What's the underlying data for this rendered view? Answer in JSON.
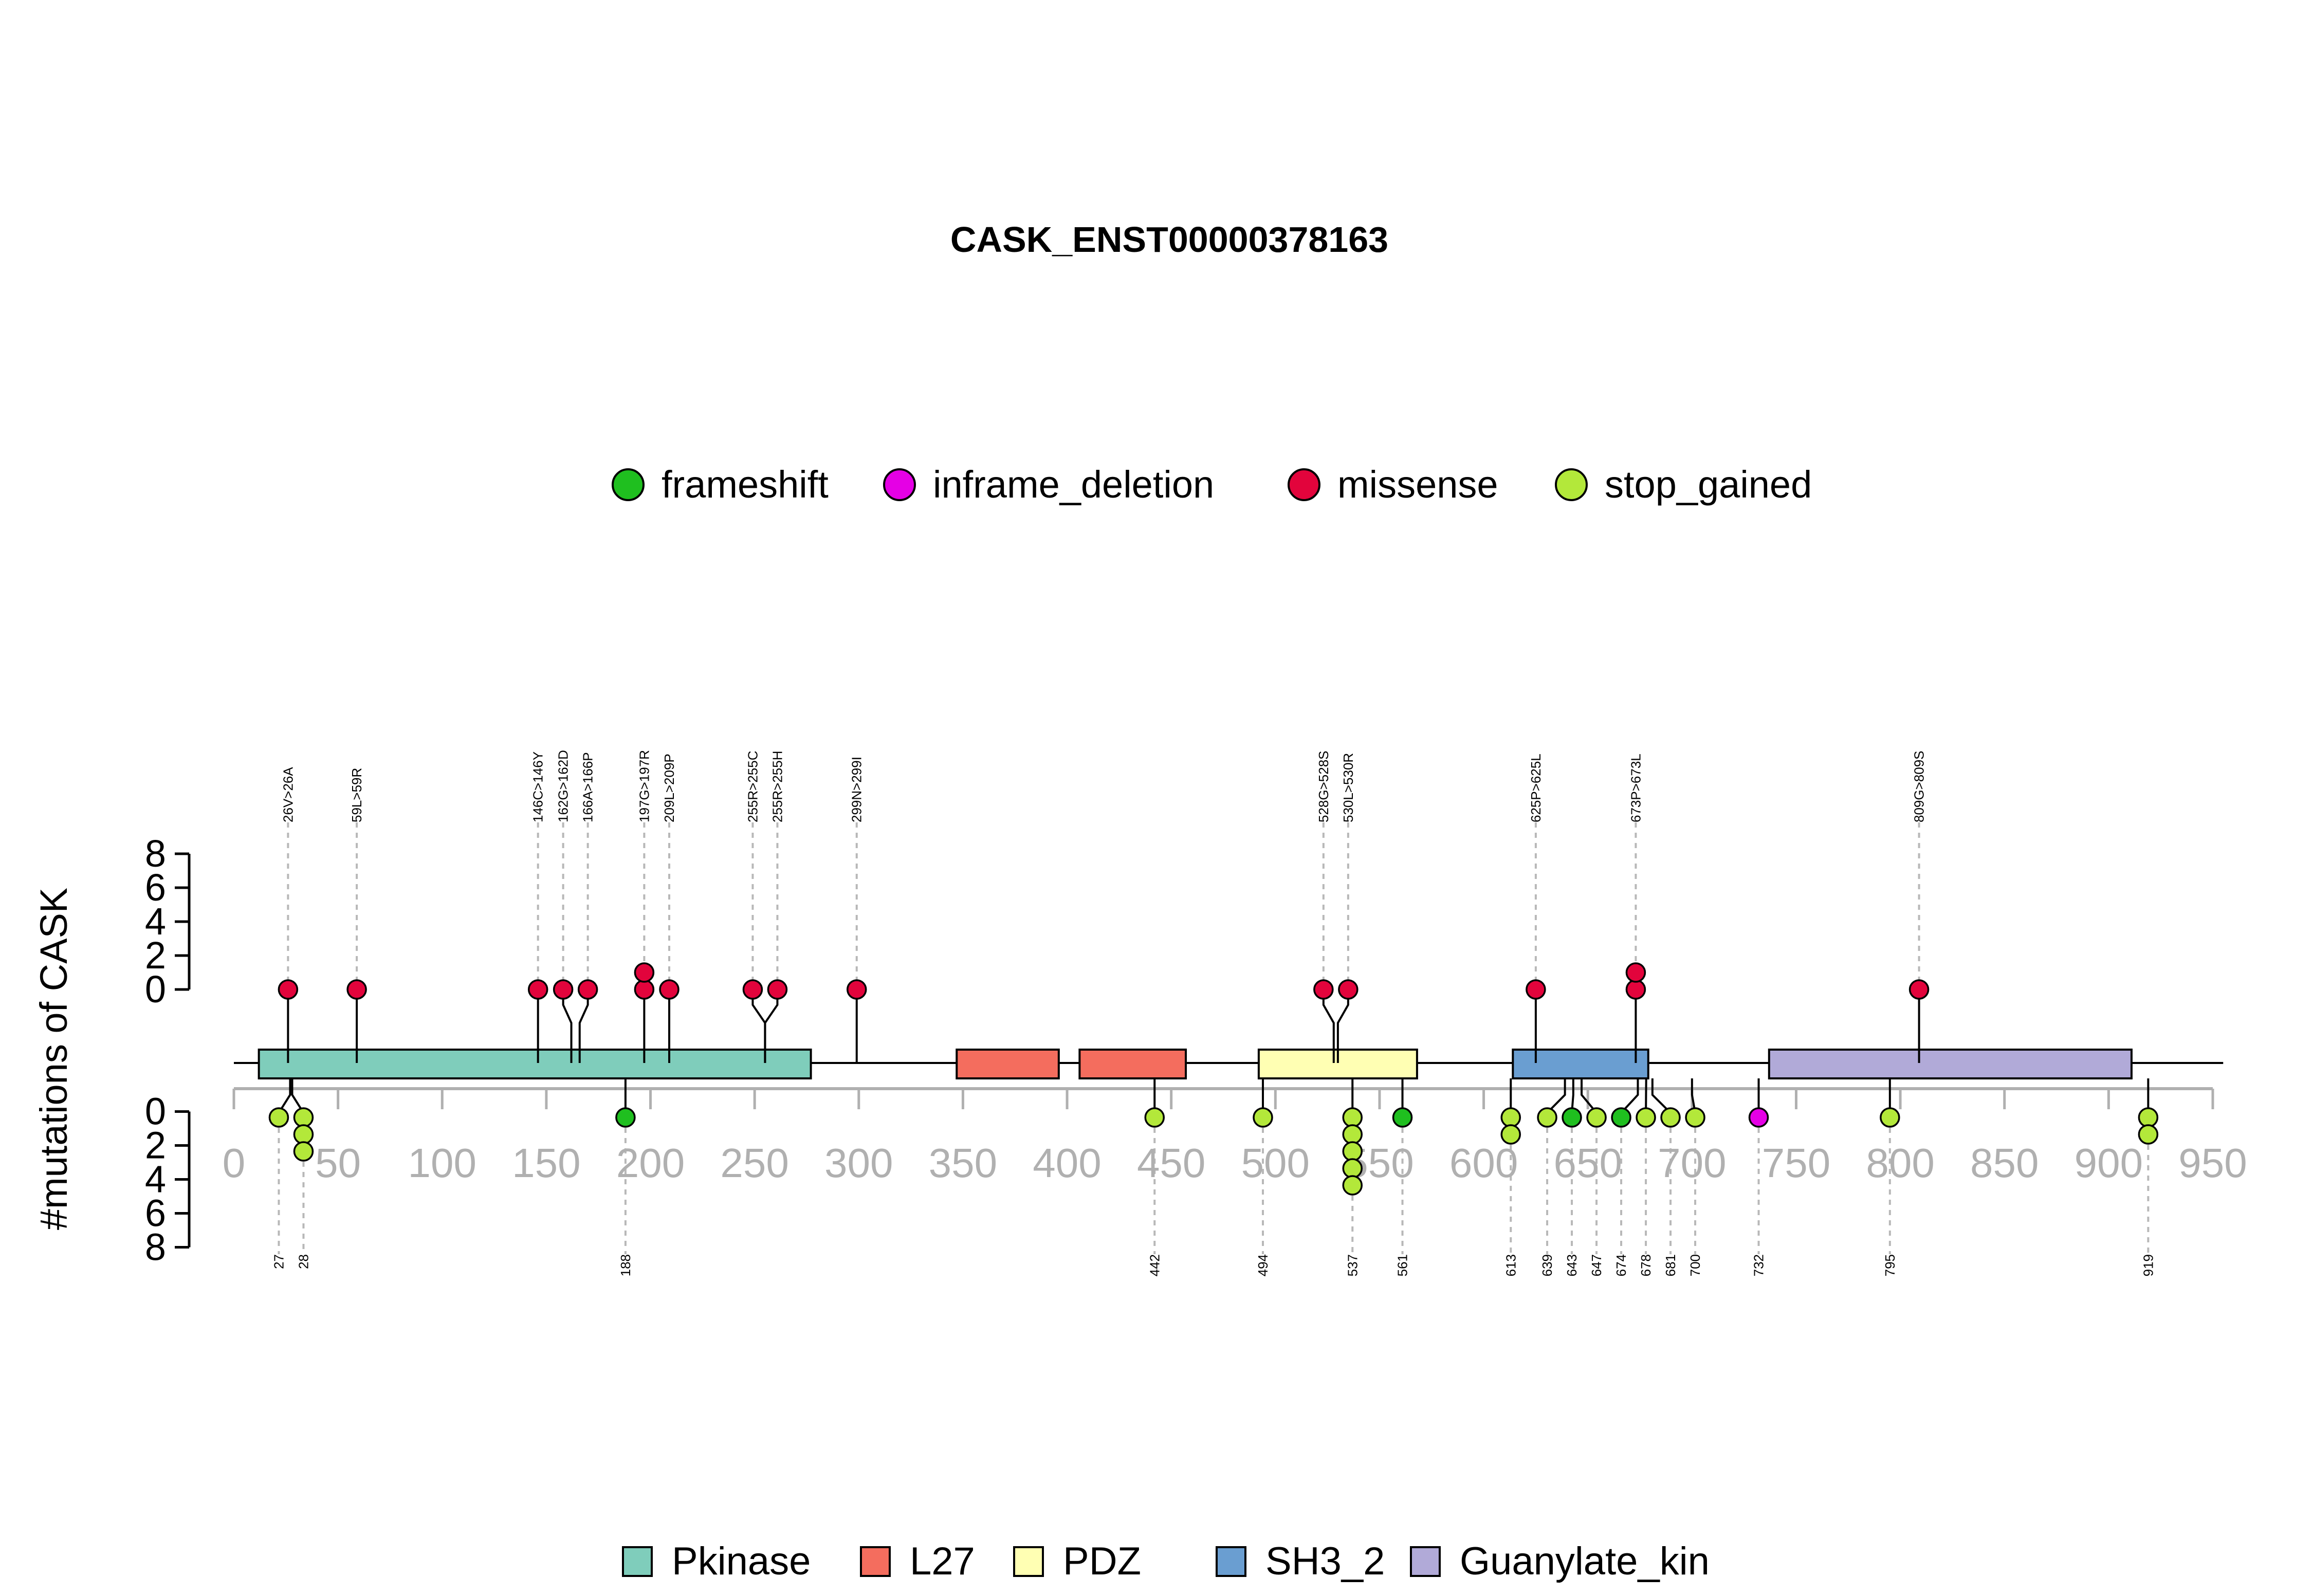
{
  "chart_data": {
    "type": "lollipop",
    "title": "CASK_ENST00000378163",
    "ylabel": "#mutations of CASK",
    "protein_length": 950,
    "xticks": [
      0,
      50,
      100,
      150,
      200,
      250,
      300,
      350,
      400,
      450,
      500,
      550,
      600,
      650,
      700,
      750,
      800,
      850,
      900,
      950
    ],
    "xticks_display": [
      "0",
      "50",
      "100",
      "150",
      "200",
      "250",
      "300",
      "350",
      "400",
      "450",
      "500",
      "550",
      "600",
      "650",
      "700",
      "750",
      "800",
      "850",
      "900",
      "950"
    ],
    "yticks_upper": [
      0,
      2,
      4,
      6,
      8
    ],
    "yticks_lower": [
      0,
      2,
      4,
      6,
      8
    ],
    "mutation_legend": [
      {
        "name": "frameshift",
        "color": "#1FBF1F"
      },
      {
        "name": "inframe_deletion",
        "color": "#E500E5"
      },
      {
        "name": "missense",
        "color": "#E2043C"
      },
      {
        "name": "stop_gained",
        "color": "#B3E83A"
      }
    ],
    "domain_legend": [
      {
        "name": "Pkinase",
        "color": "#7FCDBB"
      },
      {
        "name": "L27",
        "color": "#F46D5E"
      },
      {
        "name": "PDZ",
        "color": "#FFFFB3"
      },
      {
        "name": "SH3_2",
        "color": "#6A9ED1"
      },
      {
        "name": "Guanylate_kin",
        "color": "#B1AAD8"
      }
    ],
    "domains": [
      {
        "name": "Pkinase",
        "start": 12,
        "end": 277
      },
      {
        "name": "L27",
        "start": 347,
        "end": 396
      },
      {
        "name": "L27",
        "start": 406,
        "end": 457
      },
      {
        "name": "PDZ",
        "start": 492,
        "end": 568
      },
      {
        "name": "SH3_2",
        "start": 614,
        "end": 679
      },
      {
        "name": "Guanylate_kin",
        "start": 737,
        "end": 911
      }
    ],
    "upper_mutations": [
      {
        "label": "26V>26A",
        "pos": 26,
        "count": 1,
        "type": "missense"
      },
      {
        "label": "59L>59R",
        "pos": 59,
        "count": 1,
        "type": "missense"
      },
      {
        "label": "146C>146Y",
        "pos": 146,
        "count": 1,
        "type": "missense"
      },
      {
        "label": "162G>162D",
        "pos": 162,
        "count": 1,
        "type": "missense"
      },
      {
        "label": "166A>166P",
        "pos": 166,
        "count": 1,
        "type": "missense"
      },
      {
        "label": "197G>197R",
        "pos": 197,
        "count": 2,
        "type": "missense"
      },
      {
        "label": "209L>209P",
        "pos": 209,
        "count": 1,
        "type": "missense"
      },
      {
        "label": "255R>255C",
        "pos": 255,
        "count": 1,
        "type": "missense"
      },
      {
        "label": "255R>255H",
        "pos": 255,
        "count": 1,
        "type": "missense"
      },
      {
        "label": "299N>299I",
        "pos": 299,
        "count": 1,
        "type": "missense"
      },
      {
        "label": "528G>528S",
        "pos": 528,
        "count": 1,
        "type": "missense"
      },
      {
        "label": "530L>530R",
        "pos": 530,
        "count": 1,
        "type": "missense"
      },
      {
        "label": "625P>625L",
        "pos": 625,
        "count": 1,
        "type": "missense"
      },
      {
        "label": "673P>673L",
        "pos": 673,
        "count": 2,
        "type": "missense"
      },
      {
        "label": "809G>809S",
        "pos": 809,
        "count": 1,
        "type": "missense"
      }
    ],
    "lower_mutations": [
      {
        "label": "27",
        "pos": 27,
        "count": 1,
        "type": "stop_gained"
      },
      {
        "label": "28",
        "pos": 28,
        "count": 3,
        "type": "stop_gained"
      },
      {
        "label": "188",
        "pos": 188,
        "count": 1,
        "type": "frameshift"
      },
      {
        "label": "442",
        "pos": 442,
        "count": 1,
        "type": "stop_gained"
      },
      {
        "label": "494",
        "pos": 494,
        "count": 1,
        "type": "stop_gained"
      },
      {
        "label": "537",
        "pos": 537,
        "count": 5,
        "type": "stop_gained"
      },
      {
        "label": "561",
        "pos": 561,
        "count": 1,
        "type": "frameshift"
      },
      {
        "label": "613",
        "pos": 613,
        "count": 2,
        "type": "stop_gained"
      },
      {
        "label": "639",
        "pos": 639,
        "count": 1,
        "type": "stop_gained"
      },
      {
        "label": "643",
        "pos": 643,
        "count": 1,
        "type": "frameshift"
      },
      {
        "label": "647",
        "pos": 647,
        "count": 1,
        "type": "stop_gained"
      },
      {
        "label": "674",
        "pos": 674,
        "count": 1,
        "type": "frameshift"
      },
      {
        "label": "678",
        "pos": 678,
        "count": 1,
        "type": "stop_gained"
      },
      {
        "label": "681",
        "pos": 681,
        "count": 1,
        "type": "stop_gained"
      },
      {
        "label": "700",
        "pos": 700,
        "count": 1,
        "type": "stop_gained"
      },
      {
        "label": "732",
        "pos": 732,
        "count": 1,
        "type": "inframe_deletion"
      },
      {
        "label": "795",
        "pos": 795,
        "count": 1,
        "type": "stop_gained"
      },
      {
        "label": "919",
        "pos": 919,
        "count": 2,
        "type": "stop_gained"
      }
    ]
  }
}
